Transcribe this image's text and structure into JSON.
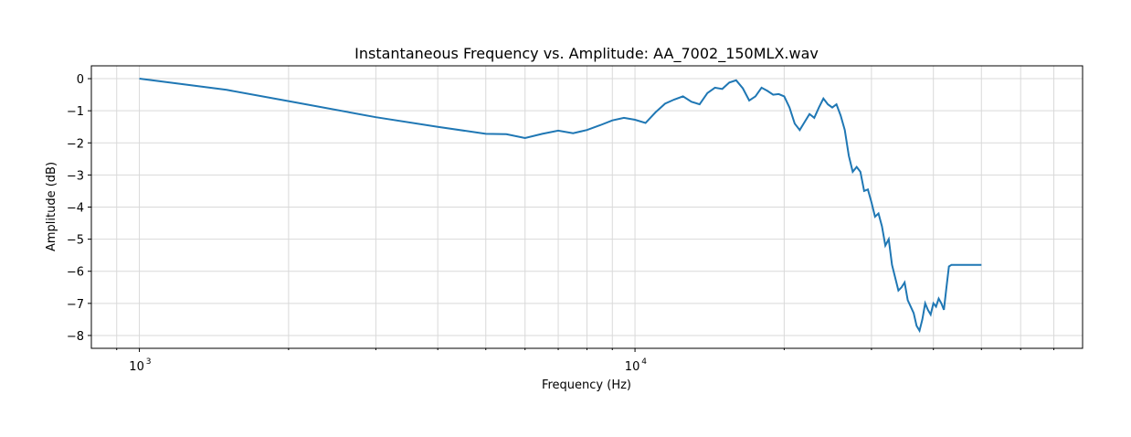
{
  "chart_data": {
    "type": "line",
    "title": "Instantaneous Frequency vs. Amplitude: AA_7002_150MLX.wav",
    "xlabel": "Frequency (Hz)",
    "ylabel": "Amplitude (dB)",
    "x_scale": "log",
    "xlim": [
      800,
      80000
    ],
    "ylim": [
      -8.4,
      0.4
    ],
    "x_major_ticks": [
      {
        "value": 1000,
        "base": "10",
        "exp": "3"
      },
      {
        "value": 10000,
        "base": "10",
        "exp": "4"
      }
    ],
    "x_minor_ticks": [
      900,
      2000,
      3000,
      4000,
      5000,
      6000,
      7000,
      8000,
      9000,
      20000,
      30000,
      40000,
      50000,
      60000,
      70000
    ],
    "y_ticks": [
      0,
      -1,
      -2,
      -3,
      -4,
      -5,
      -6,
      -7,
      -8
    ],
    "grid": true,
    "color": "#1f77b4",
    "series": [
      {
        "x": [
          1000,
          1500,
          2000,
          3000,
          4000,
          5000,
          5500,
          6000,
          6500,
          7000,
          7500,
          8000,
          8500,
          9000,
          9500,
          10000,
          10500,
          11000,
          11500,
          12000,
          12500,
          13000,
          13500,
          14000,
          14500,
          15000,
          15500,
          16000,
          16500,
          17000,
          17500,
          18000,
          18500,
          19000,
          19500,
          20000,
          20500,
          21000,
          21500,
          22000,
          22500,
          23000,
          23500,
          24000,
          24500,
          25000,
          25500,
          26000,
          26500,
          27000,
          27500,
          28000,
          28500,
          29000,
          29500,
          30000,
          30500,
          31000,
          31500,
          32000,
          32500,
          33000,
          33500,
          34000,
          34500,
          35000,
          35500,
          36000,
          36500,
          37000,
          37500,
          38000,
          38500,
          39000,
          39500,
          40000,
          40500,
          41000,
          41500,
          42000,
          42500,
          43000,
          43500,
          44000,
          44500,
          45000,
          45500,
          46000,
          46500,
          47000,
          47500,
          48000,
          48500,
          49000,
          49500,
          50000
        ],
        "y": [
          0,
          -0.35,
          -0.7,
          -1.2,
          -1.5,
          -1.72,
          -1.73,
          -1.85,
          -1.72,
          -1.62,
          -1.7,
          -1.6,
          -1.45,
          -1.3,
          -1.22,
          -1.28,
          -1.38,
          -1.05,
          -0.78,
          -0.65,
          -0.55,
          -0.72,
          -0.8,
          -0.45,
          -0.28,
          -0.32,
          -0.12,
          -0.05,
          -0.3,
          -0.68,
          -0.55,
          -0.28,
          -0.38,
          -0.5,
          -0.48,
          -0.55,
          -0.9,
          -1.4,
          -1.6,
          -1.35,
          -1.1,
          -1.22,
          -0.9,
          -0.62,
          -0.8,
          -0.9,
          -0.8,
          -1.15,
          -1.6,
          -2.4,
          -2.9,
          -2.75,
          -2.9,
          -3.5,
          -3.45,
          -3.85,
          -4.3,
          -4.2,
          -4.6,
          -5.2,
          -5.0,
          -5.8,
          -6.2,
          -6.6,
          -6.5,
          -6.35,
          -6.9,
          -7.1,
          -7.3,
          -7.7,
          -7.85,
          -7.5,
          -7.0,
          -7.2,
          -7.35,
          -7.0,
          -7.1,
          -6.85,
          -7.0,
          -7.2,
          -6.5,
          -5.85,
          -5.8,
          -5.8,
          -5.8,
          -5.8,
          -5.8,
          -5.8,
          -5.8,
          -5.8,
          -5.8,
          -5.8,
          -5.8,
          -5.8,
          -5.8,
          -5.8
        ]
      }
    ]
  }
}
